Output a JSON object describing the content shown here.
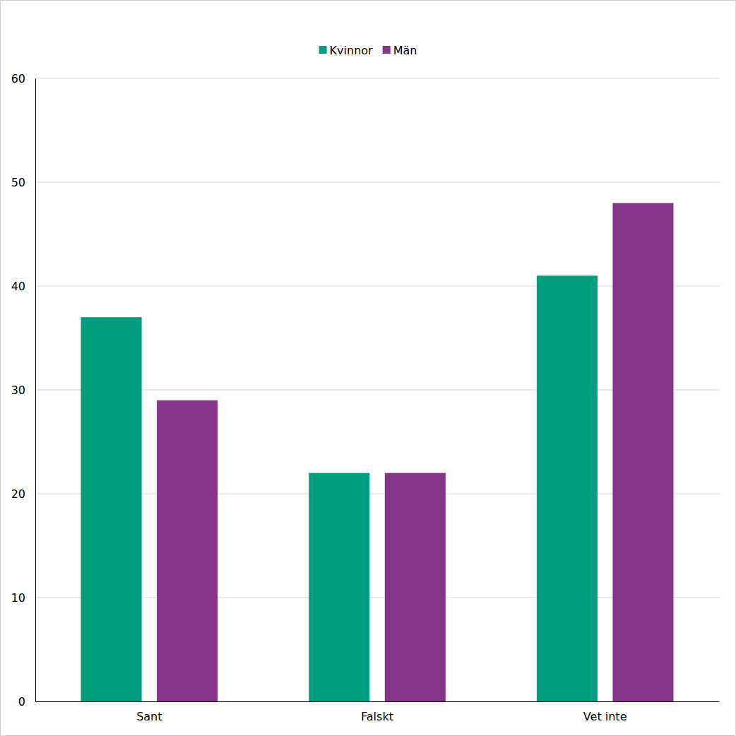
{
  "chart_data": {
    "type": "bar",
    "categories": [
      "Sant",
      "Falskt",
      "Vet inte"
    ],
    "series": [
      {
        "name": "Kvinnor",
        "color": "#009e7f",
        "values": [
          37,
          22,
          41
        ]
      },
      {
        "name": "Män",
        "color": "#843589",
        "values": [
          29,
          22,
          48
        ]
      }
    ],
    "ylim": [
      0,
      60
    ],
    "yticks": [
      0,
      10,
      20,
      30,
      40,
      50,
      60
    ],
    "grid": true,
    "legend": "top"
  }
}
